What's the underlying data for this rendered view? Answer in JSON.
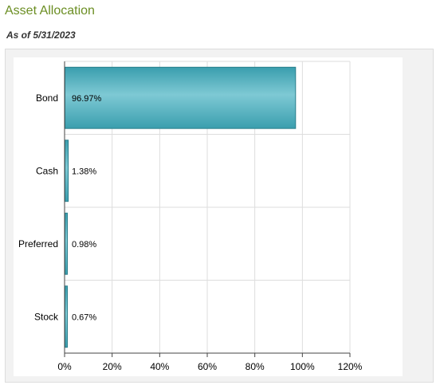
{
  "header": {
    "title": "Asset Allocation",
    "as_of": "As of 5/31/2023"
  },
  "colors": {
    "title": "#6b8e23",
    "bar_fill": "#4fb0bf",
    "bar_stroke": "#2a7f8c",
    "grid": "#dddddd"
  },
  "chart_data": {
    "type": "bar",
    "orientation": "horizontal",
    "categories": [
      "Bond",
      "Cash",
      "Preferred",
      "Stock"
    ],
    "values": [
      96.97,
      1.38,
      0.98,
      0.67
    ],
    "data_labels": [
      "96.97%",
      "1.38%",
      "0.98%",
      "0.67%"
    ],
    "xlim": [
      0,
      120
    ],
    "xticks": [
      0,
      20,
      40,
      60,
      80,
      100,
      120
    ],
    "xtick_labels": [
      "0%",
      "20%",
      "40%",
      "60%",
      "80%",
      "100%",
      "120%"
    ],
    "grid": true,
    "legend": "none"
  }
}
